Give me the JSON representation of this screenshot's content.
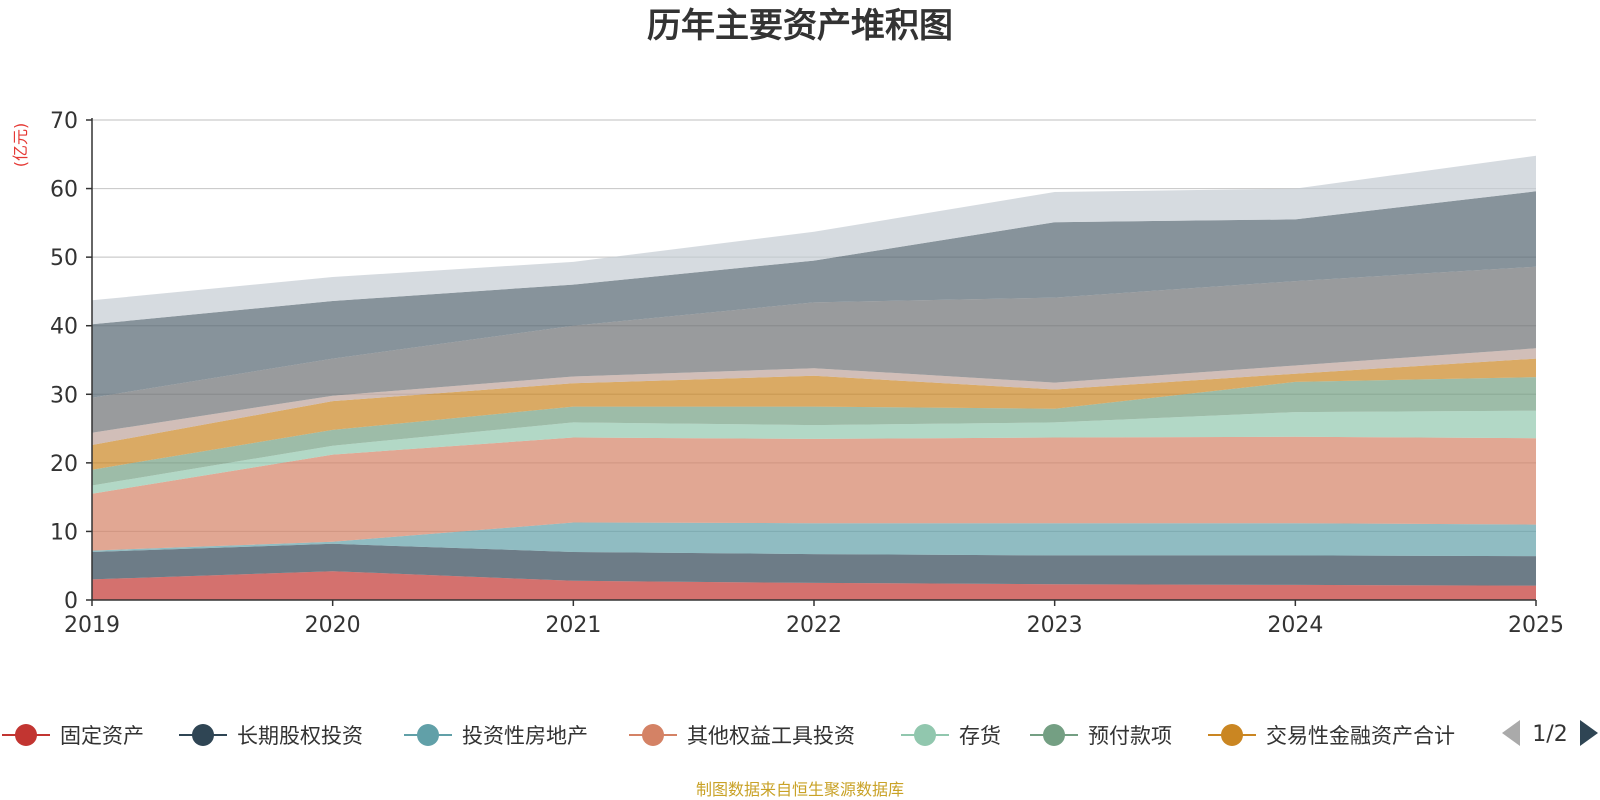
{
  "chart_data": {
    "type": "area",
    "stacked": true,
    "title": "历年主要资产堆积图",
    "ylabel": "(亿元)",
    "ylim": [
      0,
      70
    ],
    "yticks": [
      0,
      10,
      20,
      30,
      40,
      50,
      60,
      70
    ],
    "grid": true,
    "categories": [
      "2019",
      "2020",
      "2021",
      "2022",
      "2023",
      "2024",
      "2025"
    ],
    "series": [
      {
        "name": "固定资产",
        "color": "#c23531",
        "values": [
          3.0,
          4.2,
          2.8,
          2.5,
          2.3,
          2.2,
          2.1
        ]
      },
      {
        "name": "长期股权投资",
        "color": "#2f4554",
        "values": [
          4.0,
          4.0,
          4.2,
          4.2,
          4.2,
          4.3,
          4.3
        ]
      },
      {
        "name": "投资性房地产",
        "color": "#61a0a8",
        "values": [
          0.2,
          0.3,
          4.3,
          4.5,
          4.7,
          4.7,
          4.6
        ]
      },
      {
        "name": "其他权益工具投资",
        "color": "#d48265",
        "values": [
          8.3,
          12.7,
          12.4,
          12.3,
          12.5,
          12.6,
          12.6
        ]
      },
      {
        "name": "存货",
        "color": "#91c7ae",
        "values": [
          1.2,
          1.3,
          2.2,
          2.0,
          2.2,
          3.6,
          4.0
        ]
      },
      {
        "name": "预付款项",
        "color": "#749f83",
        "values": [
          2.3,
          2.3,
          2.3,
          2.7,
          2.0,
          4.4,
          4.9
        ]
      },
      {
        "name": "交易性金融资产合计",
        "color": "#ca8622",
        "values": [
          3.6,
          4.2,
          3.4,
          4.5,
          2.8,
          1.2,
          2.7
        ]
      },
      {
        "name": "",
        "color": "#bda29a",
        "values": [
          1.8,
          0.8,
          1.0,
          1.1,
          1.0,
          1.2,
          1.5
        ]
      },
      {
        "name": "",
        "color": "#6e7074",
        "values": [
          5.1,
          5.4,
          7.4,
          9.6,
          12.4,
          12.3,
          11.9
        ]
      },
      {
        "name": "",
        "color": "#546570",
        "values": [
          10.7,
          8.4,
          6.0,
          6.1,
          11.0,
          9.0,
          11.0
        ]
      },
      {
        "name": "",
        "color": "#c4ccd3",
        "values": [
          3.5,
          3.5,
          3.3,
          4.2,
          4.4,
          4.5,
          5.2
        ]
      }
    ]
  },
  "legend": {
    "items": [
      {
        "label": "固定资产",
        "color": "#c23531"
      },
      {
        "label": "长期股权投资",
        "color": "#2f4554"
      },
      {
        "label": "投资性房地产",
        "color": "#61a0a8"
      },
      {
        "label": "其他权益工具投资",
        "color": "#d48265"
      },
      {
        "label": "存货",
        "color": "#91c7ae"
      },
      {
        "label": "预付款项",
        "color": "#749f83"
      },
      {
        "label": "交易性金融资产合计",
        "color": "#ca8622"
      }
    ],
    "page_indicator": "1/2"
  },
  "footer": {
    "source": "制图数据来自恒生聚源数据库"
  }
}
